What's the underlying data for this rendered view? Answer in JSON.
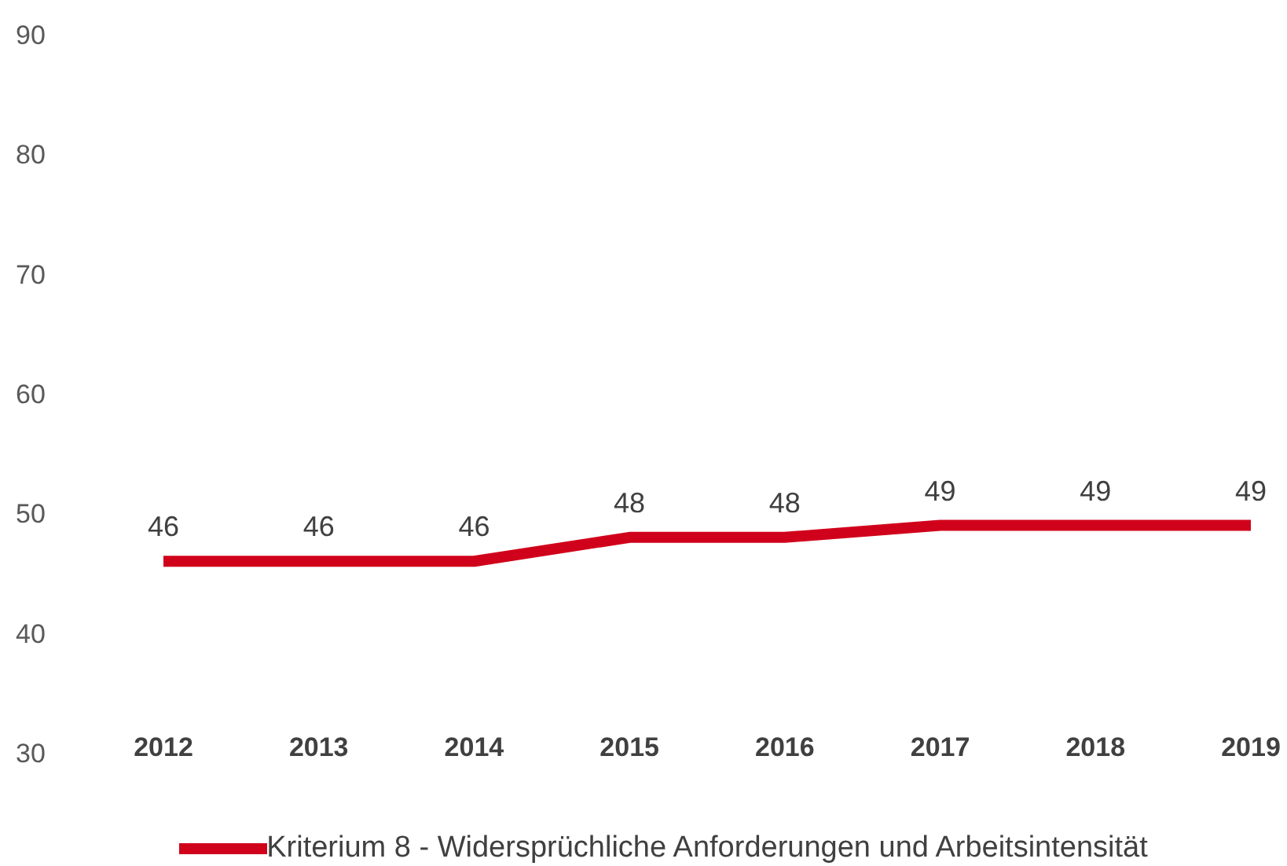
{
  "chart_data": {
    "type": "line",
    "categories": [
      "2012",
      "2013",
      "2014",
      "2015",
      "2016",
      "2017",
      "2018",
      "2019"
    ],
    "series": [
      {
        "name": "Kriterium 8 - Widersprüchliche Anforderungen und Arbeitsintensität",
        "color": "#d0021b",
        "values": [
          46,
          46,
          46,
          48,
          48,
          49,
          49,
          49
        ]
      }
    ],
    "ylim": [
      30,
      90
    ],
    "yticks": [
      30,
      40,
      50,
      60,
      70,
      80,
      90
    ],
    "grid": false,
    "legend": "bottom",
    "data_labels": true,
    "marker": "none",
    "line_style": "solid"
  }
}
